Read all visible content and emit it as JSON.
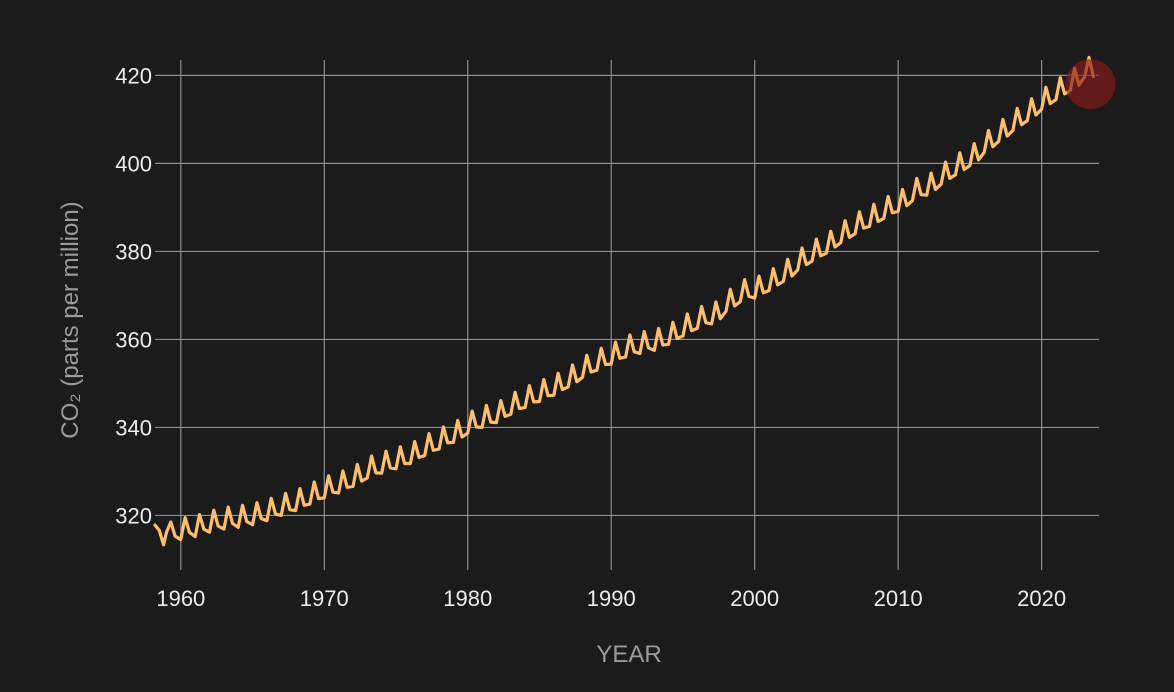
{
  "chart_data": {
    "type": "line",
    "title": "",
    "xlabel": "YEAR",
    "ylabel": "CO₂ (parts per million)",
    "xlim": [
      1958.2,
      2024.0
    ],
    "ylim": [
      307.6,
      423.5
    ],
    "grid": true,
    "x_ticks": [
      1960,
      1970,
      1980,
      1990,
      2000,
      2010,
      2020
    ],
    "y_ticks": [
      320,
      340,
      360,
      380,
      400,
      420
    ],
    "colors": {
      "background": "#1b1b1b",
      "line": "#ffbe6b",
      "marker": "#8b1a1a"
    },
    "series": [
      {
        "x": [
          1958.2,
          1958.5,
          1958.8,
          1959.0,
          1959.3,
          1959.6,
          1960.0,
          1960.3,
          1960.6,
          1961.0,
          1961.3,
          1961.6,
          1962.0,
          1962.3,
          1962.6,
          1963.0,
          1963.3,
          1963.6,
          1964.0,
          1964.3,
          1964.6,
          1965.0,
          1965.3,
          1965.6,
          1966.0,
          1966.3,
          1966.6,
          1967.0,
          1967.3,
          1967.6,
          1968.0,
          1968.3,
          1968.6,
          1969.0,
          1969.3,
          1969.6,
          1970.0,
          1970.3,
          1970.6,
          1971.0,
          1971.3,
          1971.6,
          1972.0,
          1972.3,
          1972.6,
          1973.0,
          1973.3,
          1973.6,
          1974.0,
          1974.3,
          1974.6,
          1975.0,
          1975.3,
          1975.6,
          1976.0,
          1976.3,
          1976.6,
          1977.0,
          1977.3,
          1977.6,
          1978.0,
          1978.3,
          1978.6,
          1979.0,
          1979.3,
          1979.6,
          1980.0,
          1980.3,
          1980.6,
          1981.0,
          1981.3,
          1981.6,
          1982.0,
          1982.3,
          1982.6,
          1983.0,
          1983.3,
          1983.6,
          1984.0,
          1984.3,
          1984.6,
          1985.0,
          1985.3,
          1985.6,
          1986.0,
          1986.3,
          1986.6,
          1987.0,
          1987.3,
          1987.6,
          1988.0,
          1988.3,
          1988.6,
          1989.0,
          1989.3,
          1989.6,
          1990.0,
          1990.3,
          1990.6,
          1991.0,
          1991.3,
          1991.6,
          1992.0,
          1992.3,
          1992.6,
          1993.0,
          1993.3,
          1993.6,
          1994.0,
          1994.3,
          1994.6,
          1995.0,
          1995.3,
          1995.6,
          1996.0,
          1996.3,
          1996.6,
          1997.0,
          1997.3,
          1997.6,
          1998.0,
          1998.3,
          1998.6,
          1999.0,
          1999.3,
          1999.6,
          2000.0,
          2000.3,
          2000.6,
          2001.0,
          2001.3,
          2001.6,
          2002.0,
          2002.3,
          2002.6,
          2003.0,
          2003.3,
          2003.6,
          2004.0,
          2004.3,
          2004.6,
          2005.0,
          2005.3,
          2005.6,
          2006.0,
          2006.3,
          2006.6,
          2007.0,
          2007.3,
          2007.6,
          2008.0,
          2008.3,
          2008.6,
          2009.0,
          2009.3,
          2009.6,
          2010.0,
          2010.3,
          2010.6,
          2011.0,
          2011.3,
          2011.6,
          2012.0,
          2012.3,
          2012.6,
          2013.0,
          2013.3,
          2013.6,
          2014.0,
          2014.3,
          2014.6,
          2015.0,
          2015.3,
          2015.6,
          2016.0,
          2016.3,
          2016.6,
          2017.0,
          2017.3,
          2017.6,
          2018.0,
          2018.3,
          2018.6,
          2019.0,
          2019.3,
          2019.6,
          2020.0,
          2020.3,
          2020.6,
          2021.0,
          2021.3,
          2021.6,
          2022.0,
          2022.3,
          2022.6,
          2023.0,
          2023.3,
          2023.6
        ],
        "y": [
          317.8,
          316.6,
          313.3,
          316.2,
          318.5,
          315.3,
          314.5,
          319.5,
          316.2,
          315.2,
          320.2,
          316.9,
          316.2,
          321.2,
          317.6,
          316.9,
          321.9,
          318.2,
          317.3,
          322.3,
          318.6,
          317.9,
          322.9,
          319.3,
          318.8,
          323.9,
          320.3,
          320.0,
          325.0,
          321.3,
          321.1,
          326.1,
          322.3,
          322.6,
          327.6,
          323.8,
          324.0,
          329.0,
          325.3,
          325.1,
          330.1,
          326.4,
          326.6,
          331.6,
          327.8,
          328.5,
          333.5,
          329.7,
          329.6,
          334.6,
          330.8,
          330.6,
          335.6,
          331.8,
          331.8,
          336.8,
          333.2,
          333.6,
          338.6,
          334.8,
          335.1,
          340.1,
          336.5,
          336.6,
          341.6,
          337.8,
          338.7,
          343.7,
          340.1,
          340.0,
          345.0,
          341.2,
          341.1,
          346.1,
          342.5,
          343.0,
          348.0,
          344.3,
          344.5,
          349.5,
          345.8,
          345.9,
          350.9,
          347.2,
          347.3,
          352.3,
          348.6,
          349.2,
          354.2,
          350.4,
          351.4,
          356.4,
          352.6,
          353.0,
          358.0,
          354.3,
          354.4,
          359.4,
          355.7,
          356.0,
          361.0,
          357.2,
          356.8,
          361.8,
          358.1,
          357.5,
          362.5,
          358.7,
          358.9,
          363.9,
          360.2,
          360.8,
          365.8,
          362.0,
          362.5,
          367.5,
          363.8,
          363.5,
          368.5,
          364.7,
          366.4,
          371.4,
          367.6,
          368.6,
          373.6,
          369.8,
          369.4,
          374.4,
          370.6,
          371.1,
          376.1,
          372.4,
          373.2,
          378.2,
          374.4,
          375.8,
          380.8,
          377.0,
          377.8,
          382.8,
          379.0,
          379.6,
          384.6,
          381.0,
          382.0,
          387.0,
          383.2,
          384.0,
          389.0,
          385.3,
          385.7,
          390.7,
          386.8,
          387.5,
          392.5,
          388.8,
          389.1,
          394.1,
          390.4,
          391.6,
          396.6,
          392.9,
          392.8,
          397.8,
          394.1,
          395.3,
          400.3,
          396.6,
          397.4,
          402.4,
          398.6,
          399.5,
          404.5,
          400.8,
          402.5,
          407.5,
          403.8,
          405.0,
          410.0,
          406.2,
          407.5,
          412.5,
          408.8,
          409.7,
          414.7,
          411.0,
          412.3,
          417.3,
          413.6,
          414.5,
          419.5,
          415.8,
          416.6,
          421.6,
          417.8,
          419.7,
          424.1,
          419.7
        ]
      }
    ],
    "marker": {
      "x": 2023.4,
      "y": 418.0
    }
  }
}
